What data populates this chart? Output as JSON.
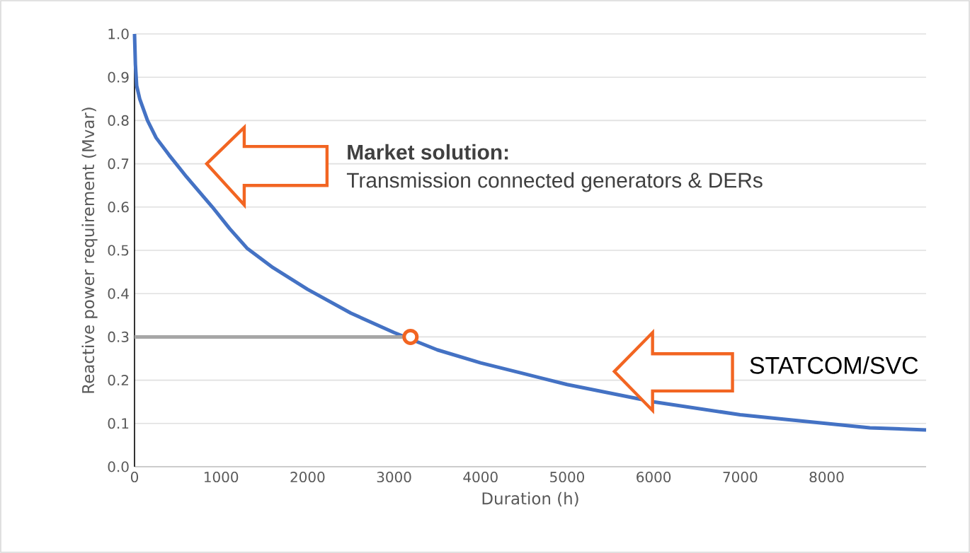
{
  "chart_data": {
    "type": "line",
    "xlabel": "Duration (h)",
    "ylabel": "Reactive power requirement (Mvar)",
    "xlim": [
      0,
      9150
    ],
    "ylim": [
      0,
      1.0
    ],
    "xticks": [
      0,
      1000,
      2000,
      3000,
      4000,
      5000,
      6000,
      7000,
      8000
    ],
    "yticks": [
      {
        "value": 0,
        "label": "0.0"
      },
      {
        "value": 0.1,
        "label": "0.1"
      },
      {
        "value": 0.2,
        "label": "0.2"
      },
      {
        "value": 0.3,
        "label": "0.3"
      },
      {
        "value": 0.4,
        "label": "0.4"
      },
      {
        "value": 0.5,
        "label": "0.5"
      },
      {
        "value": 0.6,
        "label": "0.6"
      },
      {
        "value": 0.7,
        "label": "0.7"
      },
      {
        "value": 0.8,
        "label": "0.8"
      },
      {
        "value": 0.9,
        "label": "0.9"
      },
      {
        "value": 1.0,
        "label": "1.0"
      }
    ],
    "grid": "y",
    "series": [
      {
        "color": "#4472c4",
        "x": [
          0,
          10,
          25,
          60,
          150,
          250,
          400,
          600,
          750,
          900,
          1100,
          1300,
          1600,
          2000,
          2500,
          3000,
          3500,
          4000,
          4500,
          5000,
          5500,
          6000,
          6500,
          7000,
          7500,
          8000,
          8500,
          9150
        ],
        "values": [
          1.0,
          0.93,
          0.88,
          0.85,
          0.8,
          0.76,
          0.72,
          0.67,
          0.635,
          0.6,
          0.55,
          0.505,
          0.46,
          0.41,
          0.355,
          0.31,
          0.27,
          0.24,
          0.215,
          0.19,
          0.17,
          0.15,
          0.135,
          0.12,
          0.11,
          0.1,
          0.09,
          0.085
        ]
      },
      {
        "type": "line",
        "color": "#a6a6a6",
        "x": [
          0,
          3100
        ],
        "values": [
          0.3,
          0.3
        ]
      },
      {
        "type": "scatter",
        "color": "#f26522",
        "x": [
          3190
        ],
        "values": [
          0.3
        ]
      }
    ],
    "annotations": [
      "**Market solution:**",
      "Transmission connected generators & DERs",
      "STATCOM/SVC"
    ]
  }
}
